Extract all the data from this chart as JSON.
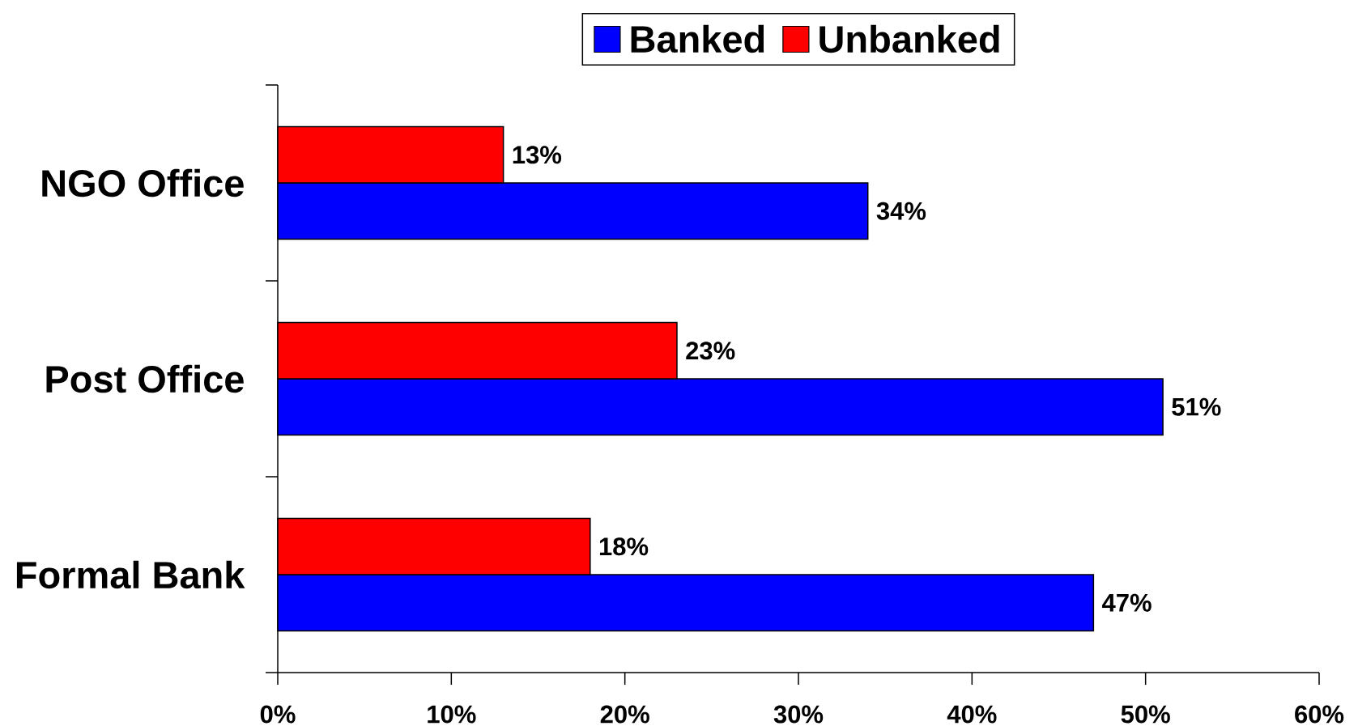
{
  "chart_data": {
    "type": "bar",
    "orientation": "horizontal",
    "categories": [
      "NGO Office",
      "Post Office",
      "Formal Bank"
    ],
    "series": [
      {
        "name": "Banked",
        "color": "#0000ff",
        "values": [
          34,
          51,
          47
        ],
        "value_labels": [
          "34%",
          "51%",
          "47%"
        ]
      },
      {
        "name": "Unbanked",
        "color": "#ff0000",
        "values": [
          13,
          23,
          18
        ],
        "value_labels": [
          "13%",
          "23%",
          "18%"
        ]
      }
    ],
    "xlim": [
      0,
      60
    ],
    "xticks": [
      {
        "value": 0,
        "label": "0%"
      },
      {
        "value": 10,
        "label": "10%"
      },
      {
        "value": 20,
        "label": "20%"
      },
      {
        "value": 30,
        "label": "30%"
      },
      {
        "value": 40,
        "label": "40%"
      },
      {
        "value": 50,
        "label": "50%"
      },
      {
        "value": 60,
        "label": "60%"
      }
    ],
    "legend": "top"
  }
}
